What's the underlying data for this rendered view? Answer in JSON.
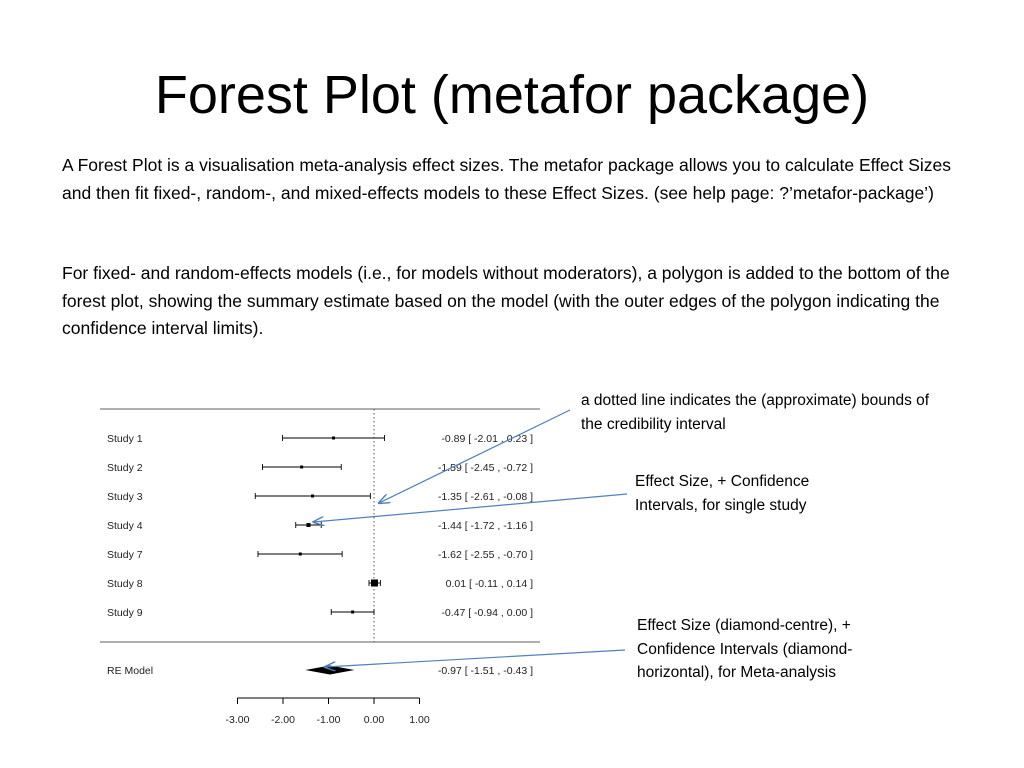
{
  "slide": {
    "title": "Forest Plot (metafor package)",
    "paragraph_1": "A Forest Plot is a visualisation meta-analysis effect sizes. The metafor package allows you to calculate Effect Sizes and then fit fixed-, random-, and mixed-effects models to these Effect Sizes. (see help page: ?’metafor-package’)",
    "paragraph_2": "For fixed- and random-effects models (i.e., for models without moderators), a polygon is added to the bottom of the forest plot, showing the summary estimate based on the model (with the outer edges of the polygon indicating the confidence interval limits)."
  },
  "annotations": {
    "dotted_line_note": "a dotted line indicates the (approximate) bounds of the credibility interval",
    "study_note": "Effect Size, + Confidence Intervals, for single study",
    "meta_note": "Effect Size (diamond-centre), + Confidence Intervals (diamond-horizontal), for Meta-analysis"
  },
  "chart_data": {
    "type": "forest",
    "reference_line": 0,
    "xlim": [
      -3,
      1
    ],
    "x_ticks": [
      "-3.00",
      "-2.00",
      "-1.00",
      "0.00",
      "1.00"
    ],
    "studies": [
      {
        "label": "Study  1",
        "estimate": -0.89,
        "lower": -2.01,
        "upper": 0.23,
        "ci_text": "-0.89 [ -2.01 ,  0.23 ]"
      },
      {
        "label": "Study  2",
        "estimate": -1.59,
        "lower": -2.45,
        "upper": -0.72,
        "ci_text": "-1.59 [ -2.45 , -0.72 ]"
      },
      {
        "label": "Study  3",
        "estimate": -1.35,
        "lower": -2.61,
        "upper": -0.08,
        "ci_text": "-1.35 [ -2.61 , -0.08 ]"
      },
      {
        "label": "Study  4",
        "estimate": -1.44,
        "lower": -1.72,
        "upper": -1.16,
        "ci_text": "-1.44 [ -1.72 , -1.16 ]"
      },
      {
        "label": "Study  7",
        "estimate": -1.62,
        "lower": -2.55,
        "upper": -0.7,
        "ci_text": "-1.62 [ -2.55 , -0.70 ]"
      },
      {
        "label": "Study  8",
        "estimate": 0.01,
        "lower": -0.11,
        "upper": 0.14,
        "ci_text": "0.01 [ -0.11 ,  0.14 ]"
      },
      {
        "label": "Study  9",
        "estimate": -0.47,
        "lower": -0.94,
        "upper": 0.0,
        "ci_text": "-0.47 [ -0.94 ,  0.00 ]"
      }
    ],
    "summary": {
      "label": "RE Model",
      "estimate": -0.97,
      "lower": -1.51,
      "upper": -0.43,
      "ci_text": "-0.97 [ -1.51 , -0.43 ]"
    },
    "colors": {
      "ink": "#000000",
      "annotation_arrow": "#4f81bd",
      "grid_line": "#7f7f7f"
    }
  }
}
